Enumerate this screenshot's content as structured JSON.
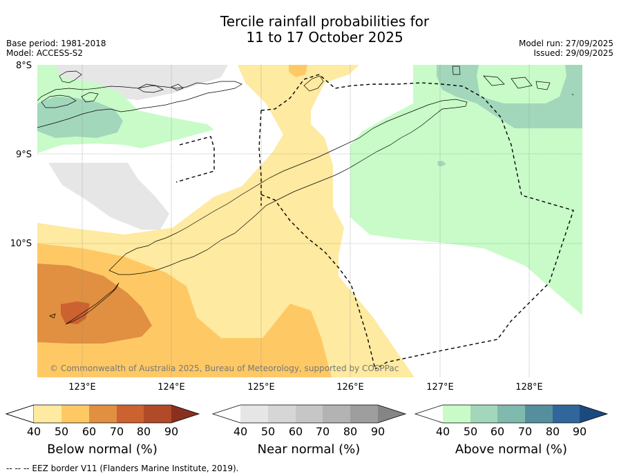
{
  "header": {
    "title": "Tercile rainfall probabilities for\n11 to 17 October 2025",
    "base_period": "Base period: 1981-2018",
    "model": "Model: ACCESS-S2",
    "model_run": "Model run: 27/09/2025",
    "issued": "Issued: 29/09/2025"
  },
  "map": {
    "lat_labels": [
      "8°S",
      "9°S",
      "10°S"
    ],
    "lon_labels": [
      "123°E",
      "124°E",
      "125°E",
      "126°E",
      "127°E",
      "128°E"
    ],
    "extent": {
      "lon_min": 122.5,
      "lon_max": 128.6,
      "lat_min": -11.5,
      "lat_max": -8.0
    },
    "copyright": "© Commonwealth of Australia 2025, Bureau of Meteorology, supported by COSPPac"
  },
  "legend": {
    "below": {
      "title": "Below normal (%)",
      "ticks": [
        "40",
        "50",
        "60",
        "70",
        "80",
        "90"
      ],
      "colors": [
        "#ffffff",
        "#feeaa0",
        "#fec965",
        "#e09040",
        "#cc6230",
        "#b04a28",
        "#8a3020"
      ]
    },
    "near": {
      "title": "Near normal (%)",
      "ticks": [
        "40",
        "50",
        "60",
        "70",
        "80",
        "90"
      ],
      "colors": [
        "#ffffff",
        "#e6e6e6",
        "#d6d6d6",
        "#c6c6c6",
        "#b3b3b3",
        "#9e9e9e",
        "#858585"
      ]
    },
    "above": {
      "title": "Above normal (%)",
      "ticks": [
        "40",
        "50",
        "60",
        "70",
        "80",
        "90"
      ],
      "colors": [
        "#ffffff",
        "#c8fbc8",
        "#a3d7bb",
        "#80b9ad",
        "#558f9e",
        "#31669b",
        "#1a4a80"
      ]
    }
  },
  "footnote": "--  --  -- EEZ border V11 (Flanders Marine Institute, 2019)."
}
